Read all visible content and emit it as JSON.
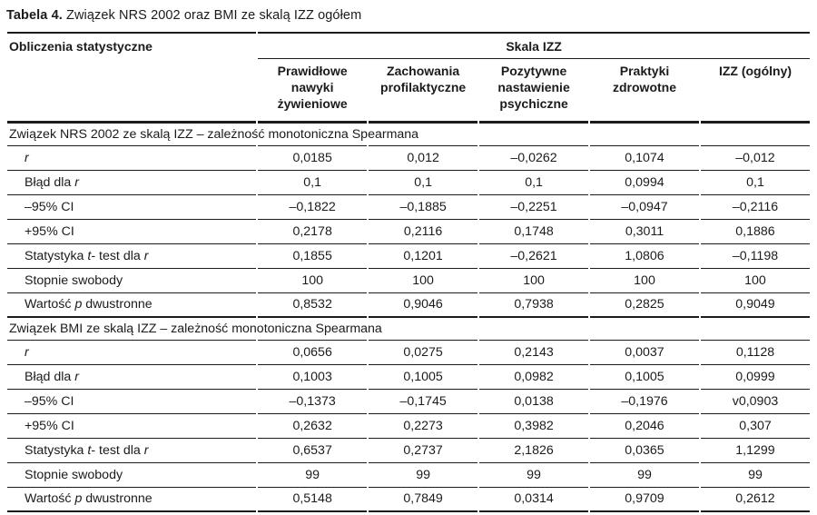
{
  "title": {
    "label": "Tabela 4.",
    "text": " Związek NRS 2002 oraz BMI ze skalą IZZ ogółem"
  },
  "table": {
    "corner_header": "Obliczenia statystyczne",
    "group_header": "Skala IZZ",
    "columns": [
      "Prawidłowe nawyki żywieniowe",
      "Zachowania profilaktyczne",
      "Pozytywne nastawienie psychiczne",
      "Praktyki zdrowotne",
      "IZZ (ogólny)"
    ],
    "sections": [
      {
        "header": "Związek NRS 2002 ze skalą  IZZ – zależność monotoniczna Spearmana",
        "rows": [
          {
            "label": [
              "r"
            ],
            "values": [
              "0,0185",
              "0,012",
              "–0,0262",
              "0,1074",
              "–0,012"
            ]
          },
          {
            "label": [
              "Błąd dla ",
              "r"
            ],
            "values": [
              "0,1",
              "0,1",
              "0,1",
              "0,0994",
              "0,1"
            ]
          },
          {
            "label": [
              "–95% CI"
            ],
            "values": [
              "–0,1822",
              "–0,1885",
              "–0,2251",
              "–0,0947",
              "–0,2116"
            ]
          },
          {
            "label": [
              "+95% CI"
            ],
            "values": [
              "0,2178",
              "0,2116",
              "0,1748",
              "0,3011",
              "0,1886"
            ]
          },
          {
            "label": [
              "Statystyka ",
              "t",
              "- test dla ",
              "r"
            ],
            "values": [
              "0,1855",
              "0,1201",
              "–0,2621",
              "1,0806",
              "–0,1198"
            ]
          },
          {
            "label": [
              "Stopnie swobody"
            ],
            "values": [
              "100",
              "100",
              "100",
              "100",
              "100"
            ]
          },
          {
            "label": [
              "Wartość ",
              "p",
              " dwustronne"
            ],
            "values": [
              "0,8532",
              "0,9046",
              "0,7938",
              "0,2825",
              "0,9049"
            ]
          }
        ]
      },
      {
        "header": "Związek BMI ze skalą IZZ – zależność monotoniczna Spearmana",
        "rows": [
          {
            "label": [
              "r"
            ],
            "values": [
              "0,0656",
              "0,0275",
              "0,2143",
              "0,0037",
              "0,1128"
            ]
          },
          {
            "label": [
              "Błąd dla ",
              "r"
            ],
            "values": [
              "0,1003",
              "0,1005",
              "0,0982",
              "0,1005",
              "0,0999"
            ]
          },
          {
            "label": [
              "–95% CI"
            ],
            "values": [
              "–0,1373",
              "–0,1745",
              "0,0138",
              "–0,1976",
              "v0,0903"
            ]
          },
          {
            "label": [
              "+95% CI"
            ],
            "values": [
              "0,2632",
              "0,2273",
              "0,3982",
              "0,2046",
              "0,307"
            ]
          },
          {
            "label": [
              "Statystyka ",
              "t",
              "- test dla ",
              "r"
            ],
            "values": [
              "0,6537",
              "0,2737",
              "2,1826",
              "0,0365",
              "1,1299"
            ]
          },
          {
            "label": [
              "Stopnie swobody"
            ],
            "values": [
              "99",
              "99",
              "99",
              "99",
              "99"
            ]
          },
          {
            "label": [
              "Wartość ",
              "p",
              " dwustronne"
            ],
            "values": [
              "0,5148",
              "0,7849",
              "0,0314",
              "0,9709",
              "0,2612"
            ]
          }
        ]
      }
    ]
  }
}
